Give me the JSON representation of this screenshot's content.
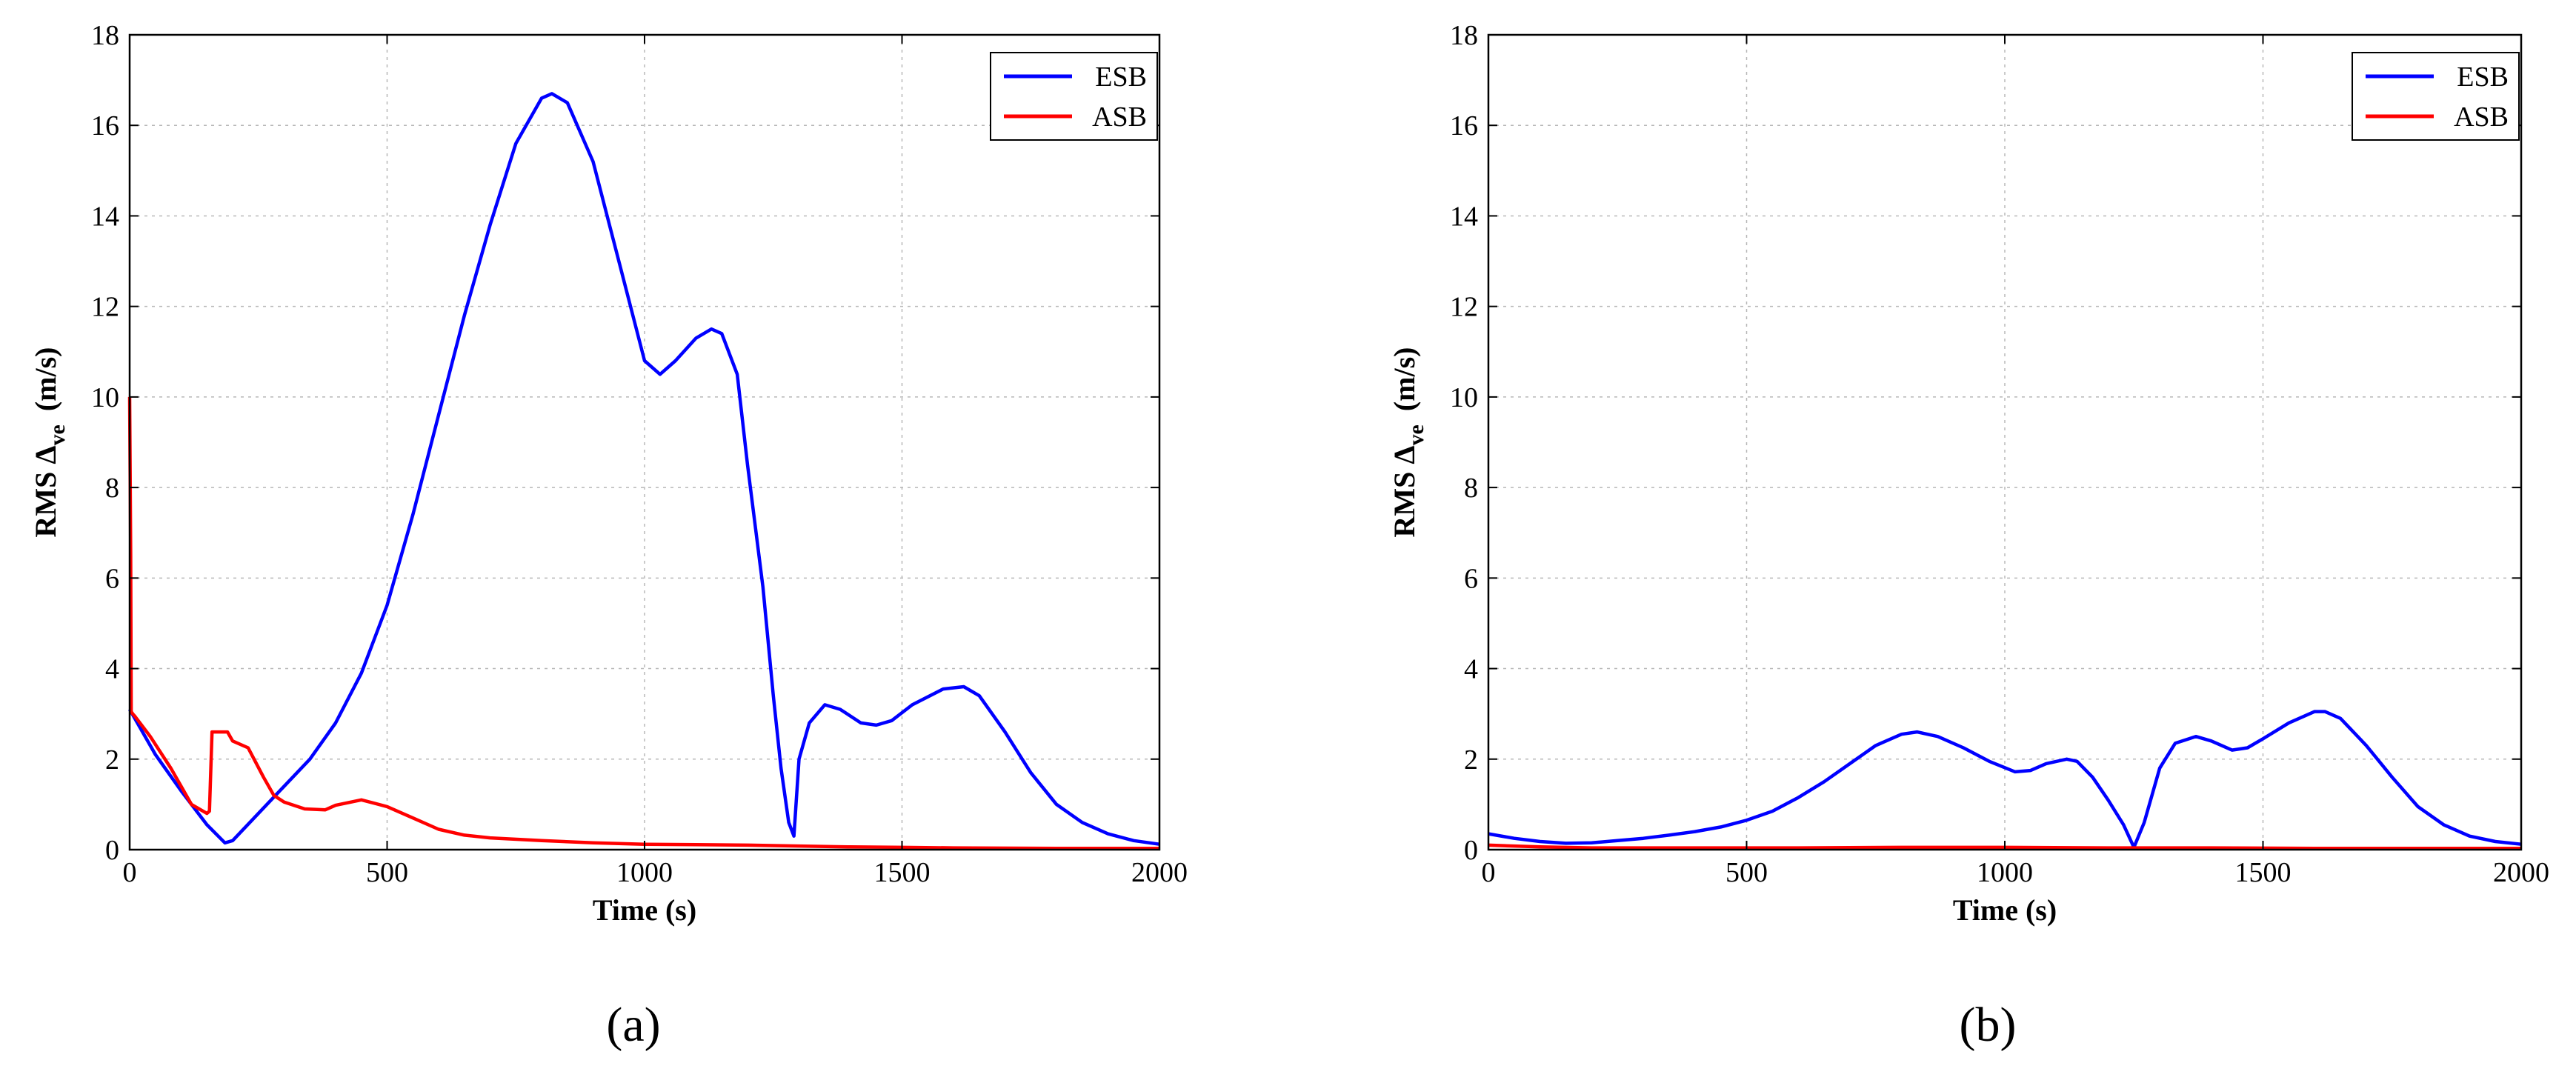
{
  "chart_data": [
    {
      "type": "line",
      "caption": "(a)",
      "xlabel": "Time  (s)",
      "ylabel_main": "RMS  Δ",
      "ylabel_sub": "ve",
      "ylabel_unit": "(m/s)",
      "xlim": [
        0,
        2000
      ],
      "ylim": [
        0,
        18
      ],
      "xticks": [
        0,
        500,
        1000,
        1500,
        2000
      ],
      "yticks": [
        0,
        2,
        4,
        6,
        8,
        10,
        12,
        14,
        16,
        18
      ],
      "grid": true,
      "legend_position": "top-right",
      "series": [
        {
          "name": "ESB",
          "color": "#0000ff",
          "x": [
            0,
            50,
            100,
            150,
            185,
            200,
            250,
            300,
            350,
            400,
            450,
            500,
            550,
            600,
            650,
            700,
            750,
            800,
            820,
            850,
            900,
            950,
            1000,
            1030,
            1060,
            1100,
            1130,
            1150,
            1180,
            1200,
            1230,
            1250,
            1265,
            1280,
            1290,
            1300,
            1320,
            1350,
            1380,
            1420,
            1450,
            1480,
            1520,
            1580,
            1620,
            1650,
            1700,
            1750,
            1800,
            1850,
            1900,
            1950,
            2000
          ],
          "y": [
            3.1,
            2.1,
            1.3,
            0.55,
            0.15,
            0.2,
            0.8,
            1.4,
            2.0,
            2.8,
            3.9,
            5.4,
            7.4,
            9.6,
            11.8,
            13.8,
            15.6,
            16.6,
            16.7,
            16.5,
            15.2,
            13.0,
            10.8,
            10.5,
            10.8,
            11.3,
            11.5,
            11.4,
            10.5,
            8.5,
            5.8,
            3.4,
            1.8,
            0.6,
            0.3,
            2.0,
            2.8,
            3.2,
            3.1,
            2.8,
            2.75,
            2.85,
            3.2,
            3.55,
            3.6,
            3.4,
            2.6,
            1.7,
            1.0,
            0.6,
            0.35,
            0.2,
            0.12
          ]
        },
        {
          "name": "ASB",
          "color": "#ff0000",
          "x": [
            0,
            2,
            3,
            6,
            10,
            40,
            80,
            120,
            150,
            155,
            160,
            190,
            200,
            230,
            260,
            280,
            300,
            340,
            380,
            400,
            450,
            500,
            550,
            600,
            650,
            700,
            800,
            900,
            1000,
            1100,
            1200,
            1300,
            1400,
            1500,
            1600,
            1800,
            2000
          ],
          "y": [
            10.0,
            6.5,
            3.05,
            3.0,
            2.95,
            2.5,
            1.8,
            1.0,
            0.8,
            0.85,
            2.6,
            2.6,
            2.4,
            2.25,
            1.6,
            1.2,
            1.05,
            0.9,
            0.88,
            0.98,
            1.1,
            0.95,
            0.7,
            0.45,
            0.32,
            0.26,
            0.2,
            0.15,
            0.12,
            0.11,
            0.1,
            0.08,
            0.06,
            0.05,
            0.04,
            0.03,
            0.03
          ]
        }
      ]
    },
    {
      "type": "line",
      "caption": "(b)",
      "xlabel": "Time  (s)",
      "ylabel_main": "RMS  Δ",
      "ylabel_sub": "ve",
      "ylabel_unit": "(m/s)",
      "xlim": [
        0,
        2000
      ],
      "ylim": [
        0,
        18
      ],
      "xticks": [
        0,
        500,
        1000,
        1500,
        2000
      ],
      "yticks": [
        0,
        2,
        4,
        6,
        8,
        10,
        12,
        14,
        16,
        18
      ],
      "grid": true,
      "legend_position": "top-right",
      "series": [
        {
          "name": "ESB",
          "color": "#0000ff",
          "x": [
            0,
            50,
            100,
            150,
            200,
            250,
            300,
            350,
            400,
            450,
            500,
            550,
            600,
            650,
            700,
            750,
            800,
            830,
            870,
            920,
            970,
            1020,
            1050,
            1080,
            1120,
            1140,
            1170,
            1200,
            1230,
            1250,
            1270,
            1300,
            1330,
            1370,
            1400,
            1440,
            1470,
            1500,
            1550,
            1600,
            1620,
            1650,
            1700,
            1750,
            1800,
            1850,
            1900,
            1950,
            2000
          ],
          "y": [
            0.35,
            0.25,
            0.18,
            0.14,
            0.15,
            0.2,
            0.25,
            0.32,
            0.4,
            0.5,
            0.65,
            0.85,
            1.15,
            1.5,
            1.9,
            2.3,
            2.55,
            2.6,
            2.5,
            2.25,
            1.95,
            1.72,
            1.75,
            1.9,
            2.0,
            1.95,
            1.6,
            1.1,
            0.55,
            0.05,
            0.6,
            1.8,
            2.35,
            2.5,
            2.4,
            2.2,
            2.25,
            2.45,
            2.8,
            3.05,
            3.05,
            2.9,
            2.3,
            1.6,
            0.95,
            0.55,
            0.3,
            0.18,
            0.12
          ]
        },
        {
          "name": "ASB",
          "color": "#ff0000",
          "x": [
            0,
            100,
            200,
            400,
            600,
            800,
            1000,
            1200,
            1400,
            1600,
            1800,
            2000
          ],
          "y": [
            0.1,
            0.06,
            0.04,
            0.04,
            0.04,
            0.05,
            0.05,
            0.04,
            0.04,
            0.03,
            0.03,
            0.03
          ]
        }
      ]
    }
  ]
}
